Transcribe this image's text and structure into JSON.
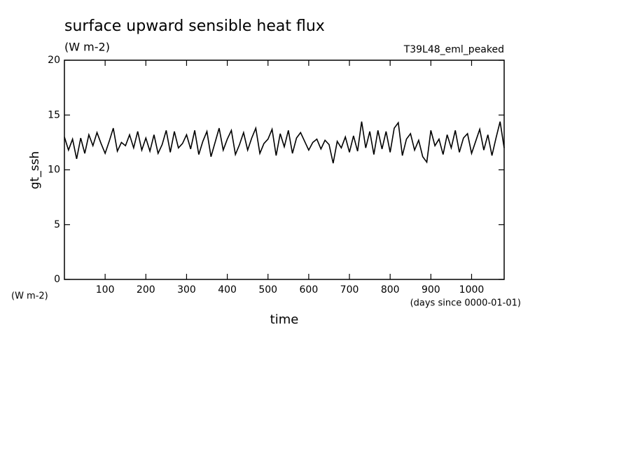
{
  "chart_data": {
    "type": "line",
    "title": "surface upward sensible heat flux",
    "subtitle": "(W m-2)",
    "annotation": "T39L48_eml_peaked",
    "ylabel": "gt_ssh",
    "y_units": "(W m-2)",
    "xlabel": "time",
    "x_units": "(days since 0000-01-01)",
    "xlim": [
      0,
      1080
    ],
    "xticks": [
      100,
      200,
      300,
      400,
      500,
      600,
      700,
      800,
      900,
      1000
    ],
    "ylim": [
      0,
      20
    ],
    "yticks": [
      0,
      5,
      10,
      15,
      20
    ],
    "color": "#000000",
    "x": [
      0,
      10,
      20,
      30,
      40,
      50,
      60,
      70,
      80,
      90,
      100,
      110,
      120,
      130,
      140,
      150,
      160,
      170,
      180,
      190,
      200,
      210,
      220,
      230,
      240,
      250,
      260,
      270,
      280,
      290,
      300,
      310,
      320,
      330,
      340,
      350,
      360,
      370,
      380,
      390,
      400,
      410,
      420,
      430,
      440,
      450,
      460,
      470,
      480,
      490,
      500,
      510,
      520,
      530,
      540,
      550,
      560,
      570,
      580,
      590,
      600,
      610,
      620,
      630,
      640,
      650,
      660,
      670,
      680,
      690,
      700,
      710,
      720,
      730,
      740,
      750,
      760,
      770,
      780,
      790,
      800,
      810,
      820,
      830,
      840,
      850,
      860,
      870,
      880,
      890,
      900,
      910,
      920,
      930,
      940,
      950,
      960,
      970,
      980,
      990,
      1000,
      1010,
      1020,
      1030,
      1040,
      1050,
      1060,
      1070,
      1080
    ],
    "values": [
      13.0,
      11.8,
      12.8,
      11.0,
      12.9,
      11.5,
      13.2,
      12.2,
      13.4,
      12.4,
      11.5,
      12.6,
      13.8,
      11.7,
      12.5,
      12.2,
      13.2,
      12.0,
      13.5,
      11.8,
      12.9,
      11.7,
      13.2,
      11.5,
      12.3,
      13.6,
      11.6,
      13.5,
      12.0,
      12.4,
      13.2,
      11.9,
      13.6,
      11.4,
      12.6,
      13.5,
      11.2,
      12.5,
      13.8,
      11.8,
      12.8,
      13.6,
      11.4,
      12.3,
      13.4,
      11.8,
      12.9,
      13.8,
      11.5,
      12.4,
      12.8,
      13.7,
      11.3,
      13.3,
      12.1,
      13.6,
      11.5,
      12.9,
      13.4,
      12.6,
      11.8,
      12.5,
      12.8,
      11.9,
      12.7,
      12.3,
      10.6,
      12.6,
      12.0,
      13.0,
      11.6,
      13.1,
      11.7,
      14.4,
      12.0,
      13.5,
      11.4,
      13.6,
      11.9,
      13.5,
      11.6,
      13.8,
      14.3,
      11.3,
      12.8,
      13.3,
      11.8,
      12.7,
      11.2,
      10.7,
      13.6,
      12.2,
      12.8,
      11.4,
      13.2,
      12.0,
      13.6,
      11.6,
      12.9,
      13.3,
      11.5,
      12.6,
      13.7,
      11.8,
      13.2,
      11.3,
      12.9,
      14.4,
      12.0
    ]
  }
}
